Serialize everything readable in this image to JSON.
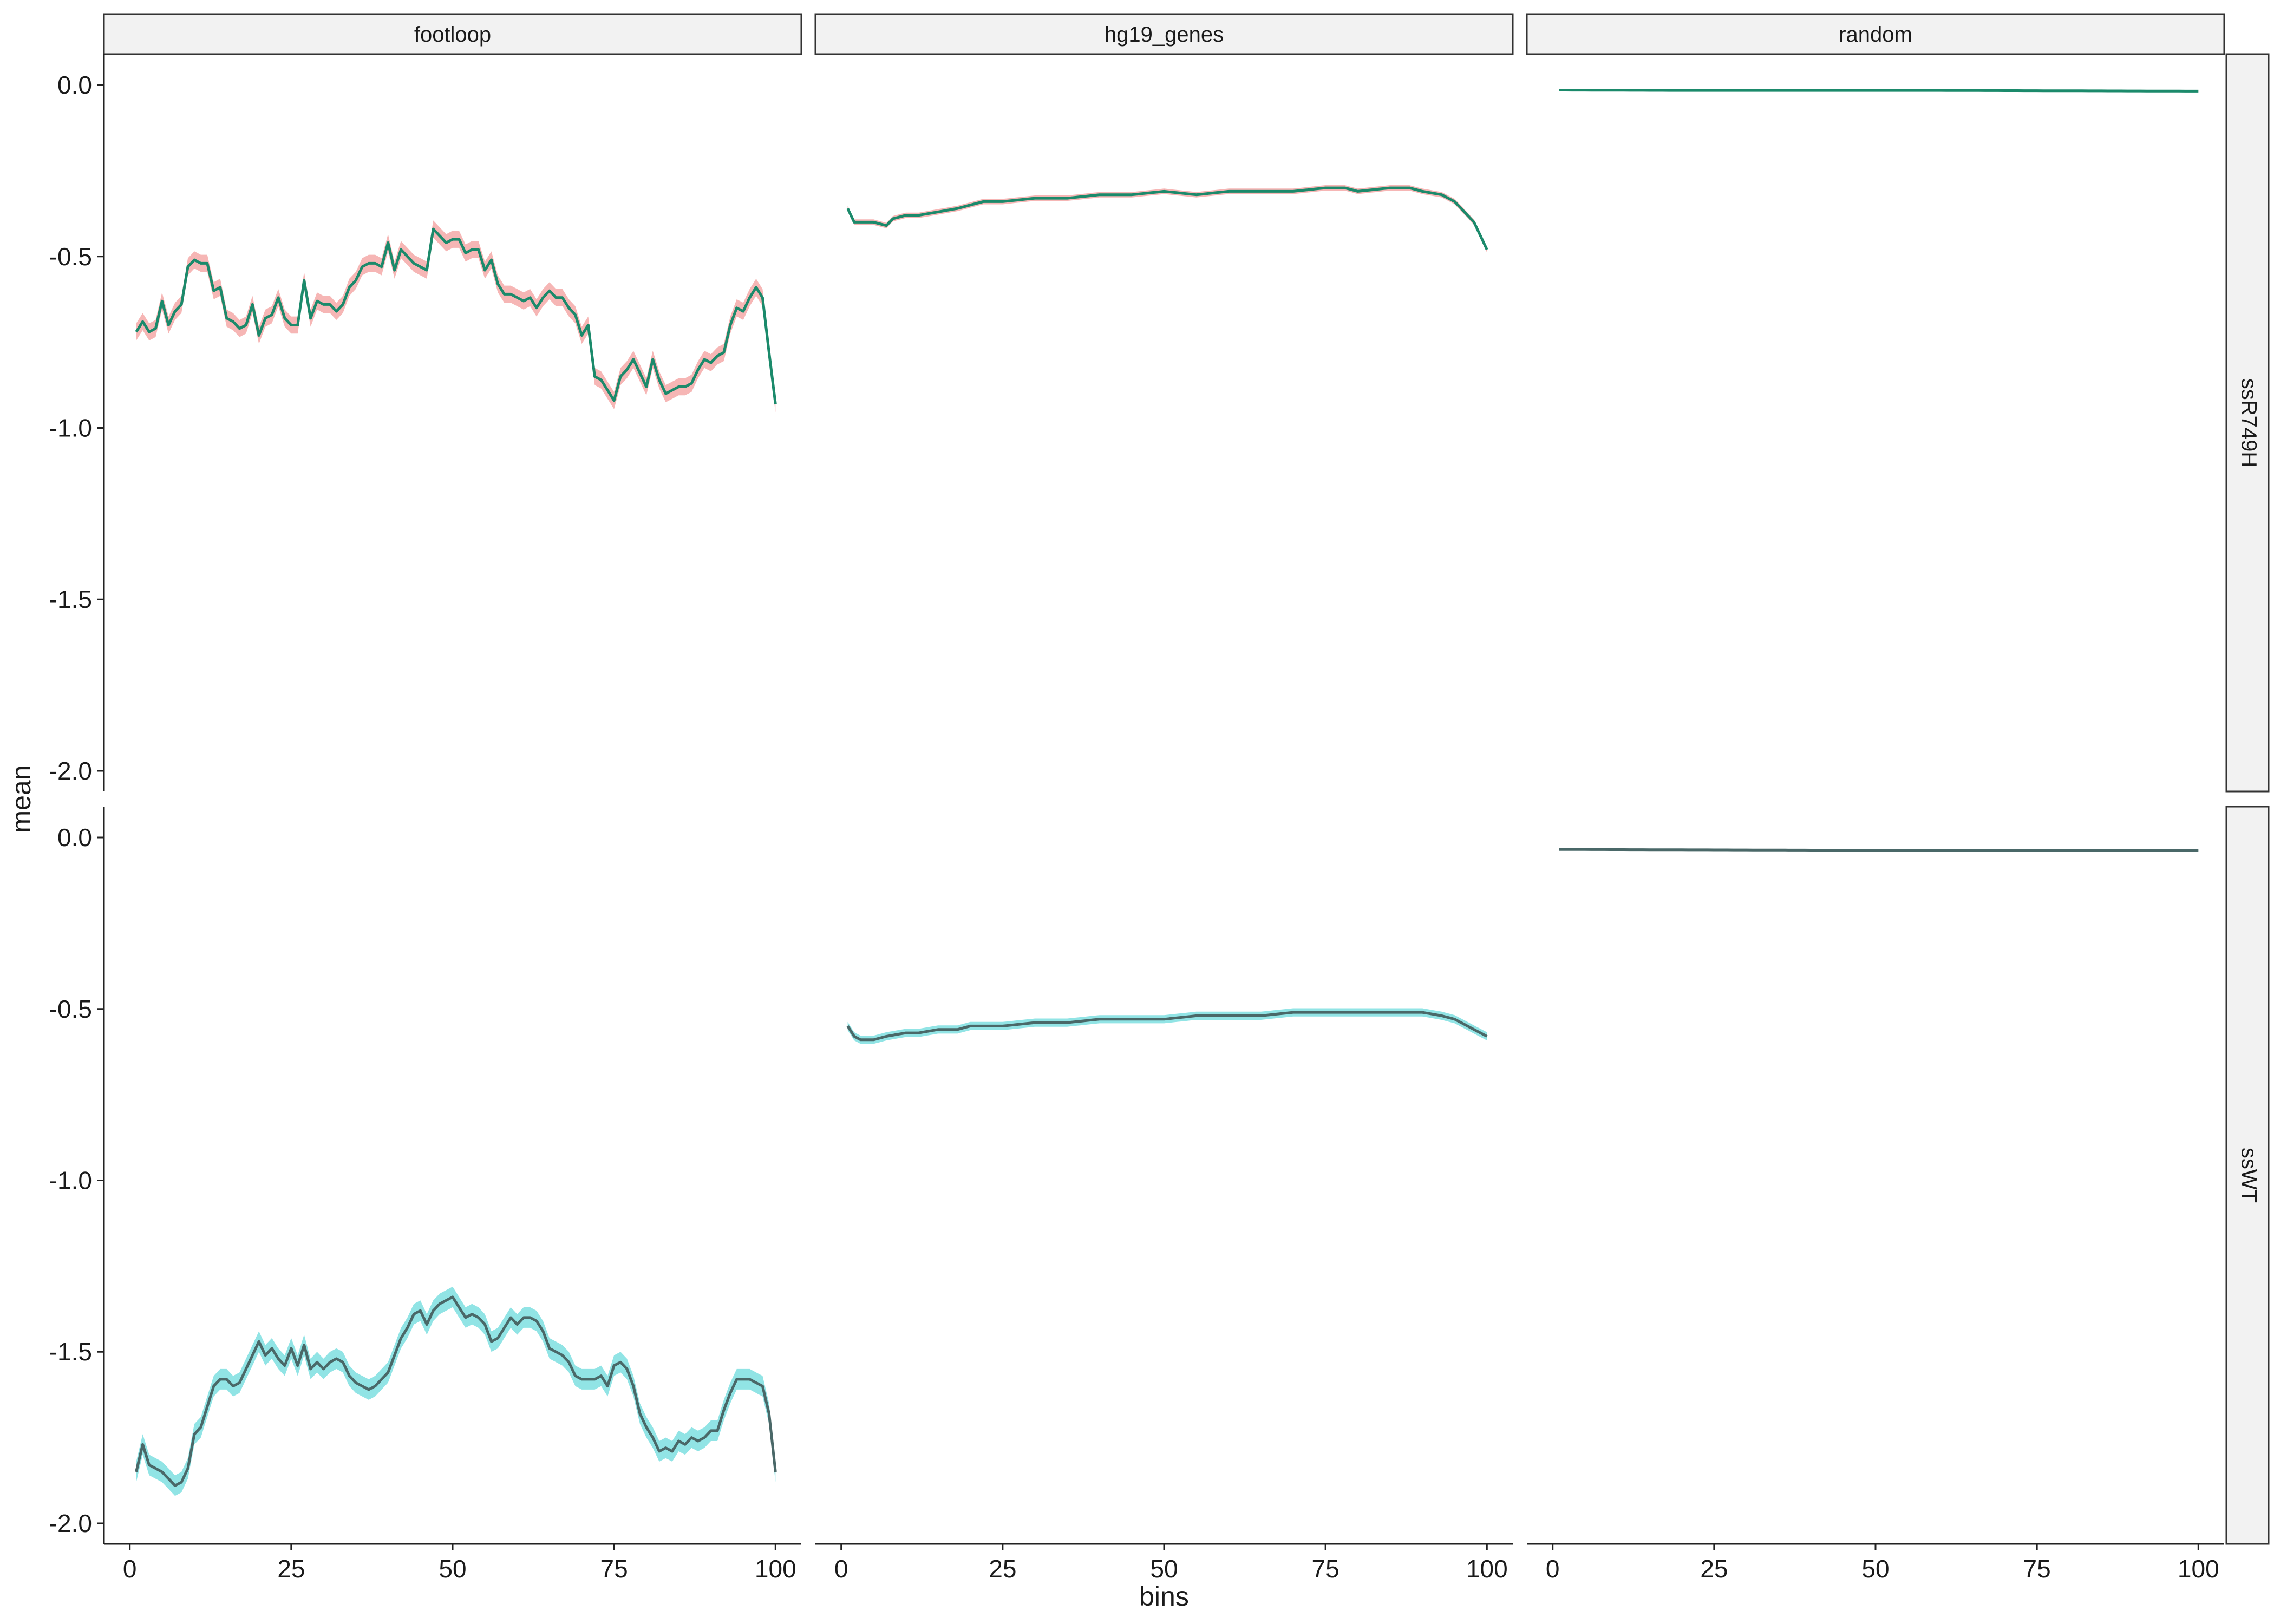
{
  "chart_data": {
    "type": "line",
    "xlabel": "bins",
    "ylabel": "mean",
    "xlim": [
      0,
      100
    ],
    "ylim": [
      -2.0,
      0.0
    ],
    "x_ticks": [
      0,
      25,
      50,
      75,
      100
    ],
    "y_ticks": [
      0.0,
      -0.5,
      -1.0,
      -1.5,
      -2.0
    ],
    "y_tick_labels": [
      "0.0",
      "-0.5",
      "-1.0",
      "-1.5",
      "-2.0"
    ],
    "grid": false,
    "legend": "none",
    "columns": [
      "footloop",
      "hg19_genes",
      "random"
    ],
    "rows": [
      "ssR749H",
      "ssWT"
    ],
    "colors": {
      "ssR749H": {
        "line": "#1b8a6b",
        "band": "#f4a9a8"
      },
      "ssWT": {
        "line": "#4a6868",
        "band": "#7edfe0"
      }
    },
    "panels": [
      {
        "row": "ssR749H",
        "col": "footloop",
        "band_width": 0.025,
        "keypoints": [
          [
            1,
            -0.72
          ],
          [
            2,
            -0.69
          ],
          [
            3,
            -0.72
          ],
          [
            4,
            -0.71
          ],
          [
            5,
            -0.63
          ],
          [
            6,
            -0.7
          ],
          [
            7,
            -0.66
          ],
          [
            8,
            -0.64
          ],
          [
            9,
            -0.53
          ],
          [
            10,
            -0.51
          ],
          [
            11,
            -0.52
          ],
          [
            12,
            -0.52
          ],
          [
            13,
            -0.6
          ],
          [
            14,
            -0.59
          ],
          [
            15,
            -0.68
          ],
          [
            16,
            -0.69
          ],
          [
            17,
            -0.71
          ],
          [
            18,
            -0.7
          ],
          [
            19,
            -0.64
          ],
          [
            20,
            -0.73
          ],
          [
            21,
            -0.68
          ],
          [
            22,
            -0.67
          ],
          [
            23,
            -0.62
          ],
          [
            24,
            -0.68
          ],
          [
            25,
            -0.7
          ],
          [
            26,
            -0.7
          ],
          [
            27,
            -0.57
          ],
          [
            28,
            -0.68
          ],
          [
            29,
            -0.63
          ],
          [
            30,
            -0.64
          ],
          [
            31,
            -0.64
          ],
          [
            32,
            -0.66
          ],
          [
            33,
            -0.64
          ],
          [
            34,
            -0.59
          ],
          [
            35,
            -0.57
          ],
          [
            36,
            -0.53
          ],
          [
            37,
            -0.52
          ],
          [
            38,
            -0.52
          ],
          [
            39,
            -0.53
          ],
          [
            40,
            -0.46
          ],
          [
            41,
            -0.54
          ],
          [
            42,
            -0.48
          ],
          [
            43,
            -0.5
          ],
          [
            44,
            -0.52
          ],
          [
            45,
            -0.53
          ],
          [
            46,
            -0.54
          ],
          [
            47,
            -0.42
          ],
          [
            48,
            -0.44
          ],
          [
            49,
            -0.46
          ],
          [
            50,
            -0.45
          ],
          [
            51,
            -0.45
          ],
          [
            52,
            -0.49
          ],
          [
            53,
            -0.48
          ],
          [
            54,
            -0.48
          ],
          [
            55,
            -0.54
          ],
          [
            56,
            -0.51
          ],
          [
            57,
            -0.58
          ],
          [
            58,
            -0.61
          ],
          [
            59,
            -0.61
          ],
          [
            60,
            -0.62
          ],
          [
            61,
            -0.63
          ],
          [
            62,
            -0.62
          ],
          [
            63,
            -0.65
          ],
          [
            64,
            -0.62
          ],
          [
            65,
            -0.6
          ],
          [
            66,
            -0.62
          ],
          [
            67,
            -0.62
          ],
          [
            68,
            -0.65
          ],
          [
            69,
            -0.67
          ],
          [
            70,
            -0.73
          ],
          [
            71,
            -0.7
          ],
          [
            72,
            -0.85
          ],
          [
            73,
            -0.86
          ],
          [
            74,
            -0.89
          ],
          [
            75,
            -0.92
          ],
          [
            76,
            -0.85
          ],
          [
            77,
            -0.83
          ],
          [
            78,
            -0.8
          ],
          [
            79,
            -0.84
          ],
          [
            80,
            -0.88
          ],
          [
            81,
            -0.8
          ],
          [
            82,
            -0.86
          ],
          [
            83,
            -0.9
          ],
          [
            84,
            -0.89
          ],
          [
            85,
            -0.88
          ],
          [
            86,
            -0.88
          ],
          [
            87,
            -0.87
          ],
          [
            88,
            -0.83
          ],
          [
            89,
            -0.8
          ],
          [
            90,
            -0.81
          ],
          [
            91,
            -0.79
          ],
          [
            92,
            -0.78
          ],
          [
            93,
            -0.7
          ],
          [
            94,
            -0.65
          ],
          [
            95,
            -0.66
          ],
          [
            96,
            -0.62
          ],
          [
            97,
            -0.59
          ],
          [
            98,
            -0.62
          ],
          [
            99,
            -0.78
          ],
          [
            100,
            -0.93
          ]
        ]
      },
      {
        "row": "ssR749H",
        "col": "hg19_genes",
        "band_width": 0.008,
        "keypoints": [
          [
            1,
            -0.36
          ],
          [
            2,
            -0.4
          ],
          [
            3,
            -0.4
          ],
          [
            5,
            -0.4
          ],
          [
            7,
            -0.41
          ],
          [
            8,
            -0.39
          ],
          [
            10,
            -0.38
          ],
          [
            12,
            -0.38
          ],
          [
            15,
            -0.37
          ],
          [
            18,
            -0.36
          ],
          [
            20,
            -0.35
          ],
          [
            22,
            -0.34
          ],
          [
            25,
            -0.34
          ],
          [
            30,
            -0.33
          ],
          [
            35,
            -0.33
          ],
          [
            40,
            -0.32
          ],
          [
            45,
            -0.32
          ],
          [
            50,
            -0.31
          ],
          [
            55,
            -0.32
          ],
          [
            60,
            -0.31
          ],
          [
            65,
            -0.31
          ],
          [
            70,
            -0.31
          ],
          [
            75,
            -0.3
          ],
          [
            78,
            -0.3
          ],
          [
            80,
            -0.31
          ],
          [
            85,
            -0.3
          ],
          [
            88,
            -0.3
          ],
          [
            90,
            -0.31
          ],
          [
            93,
            -0.32
          ],
          [
            95,
            -0.34
          ],
          [
            97,
            -0.38
          ],
          [
            98,
            -0.4
          ],
          [
            100,
            -0.48
          ]
        ]
      },
      {
        "row": "ssR749H",
        "col": "random",
        "band_width": 0.002,
        "keypoints": [
          [
            1,
            -0.015
          ],
          [
            20,
            -0.016
          ],
          [
            40,
            -0.016
          ],
          [
            60,
            -0.016
          ],
          [
            80,
            -0.017
          ],
          [
            100,
            -0.018
          ]
        ]
      },
      {
        "row": "ssWT",
        "col": "footloop",
        "band_width": 0.03,
        "keypoints": [
          [
            1,
            -1.85
          ],
          [
            2,
            -1.77
          ],
          [
            3,
            -1.83
          ],
          [
            4,
            -1.84
          ],
          [
            5,
            -1.85
          ],
          [
            6,
            -1.87
          ],
          [
            7,
            -1.89
          ],
          [
            8,
            -1.88
          ],
          [
            9,
            -1.84
          ],
          [
            10,
            -1.74
          ],
          [
            11,
            -1.72
          ],
          [
            12,
            -1.66
          ],
          [
            13,
            -1.6
          ],
          [
            14,
            -1.58
          ],
          [
            15,
            -1.58
          ],
          [
            16,
            -1.6
          ],
          [
            17,
            -1.59
          ],
          [
            18,
            -1.55
          ],
          [
            19,
            -1.51
          ],
          [
            20,
            -1.47
          ],
          [
            21,
            -1.51
          ],
          [
            22,
            -1.49
          ],
          [
            23,
            -1.52
          ],
          [
            24,
            -1.54
          ],
          [
            25,
            -1.49
          ],
          [
            26,
            -1.54
          ],
          [
            27,
            -1.48
          ],
          [
            28,
            -1.55
          ],
          [
            29,
            -1.53
          ],
          [
            30,
            -1.55
          ],
          [
            31,
            -1.53
          ],
          [
            32,
            -1.52
          ],
          [
            33,
            -1.53
          ],
          [
            34,
            -1.57
          ],
          [
            35,
            -1.59
          ],
          [
            36,
            -1.6
          ],
          [
            37,
            -1.61
          ],
          [
            38,
            -1.6
          ],
          [
            39,
            -1.58
          ],
          [
            40,
            -1.56
          ],
          [
            41,
            -1.51
          ],
          [
            42,
            -1.46
          ],
          [
            43,
            -1.43
          ],
          [
            44,
            -1.39
          ],
          [
            45,
            -1.38
          ],
          [
            46,
            -1.42
          ],
          [
            47,
            -1.38
          ],
          [
            48,
            -1.36
          ],
          [
            49,
            -1.35
          ],
          [
            50,
            -1.34
          ],
          [
            51,
            -1.37
          ],
          [
            52,
            -1.4
          ],
          [
            53,
            -1.39
          ],
          [
            54,
            -1.4
          ],
          [
            55,
            -1.42
          ],
          [
            56,
            -1.47
          ],
          [
            57,
            -1.46
          ],
          [
            58,
            -1.43
          ],
          [
            59,
            -1.4
          ],
          [
            60,
            -1.42
          ],
          [
            61,
            -1.4
          ],
          [
            62,
            -1.4
          ],
          [
            63,
            -1.41
          ],
          [
            64,
            -1.44
          ],
          [
            65,
            -1.49
          ],
          [
            66,
            -1.5
          ],
          [
            67,
            -1.51
          ],
          [
            68,
            -1.53
          ],
          [
            69,
            -1.57
          ],
          [
            70,
            -1.58
          ],
          [
            71,
            -1.58
          ],
          [
            72,
            -1.58
          ],
          [
            73,
            -1.57
          ],
          [
            74,
            -1.6
          ],
          [
            75,
            -1.54
          ],
          [
            76,
            -1.53
          ],
          [
            77,
            -1.55
          ],
          [
            78,
            -1.6
          ],
          [
            79,
            -1.68
          ],
          [
            80,
            -1.72
          ],
          [
            81,
            -1.75
          ],
          [
            82,
            -1.79
          ],
          [
            83,
            -1.78
          ],
          [
            84,
            -1.79
          ],
          [
            85,
            -1.76
          ],
          [
            86,
            -1.77
          ],
          [
            87,
            -1.75
          ],
          [
            88,
            -1.76
          ],
          [
            89,
            -1.75
          ],
          [
            90,
            -1.73
          ],
          [
            91,
            -1.73
          ],
          [
            92,
            -1.67
          ],
          [
            93,
            -1.62
          ],
          [
            94,
            -1.58
          ],
          [
            95,
            -1.58
          ],
          [
            96,
            -1.58
          ],
          [
            97,
            -1.59
          ],
          [
            98,
            -1.6
          ],
          [
            99,
            -1.68
          ],
          [
            100,
            -1.85
          ]
        ]
      },
      {
        "row": "ssWT",
        "col": "hg19_genes",
        "band_width": 0.012,
        "keypoints": [
          [
            1,
            -0.55
          ],
          [
            2,
            -0.58
          ],
          [
            3,
            -0.59
          ],
          [
            5,
            -0.59
          ],
          [
            7,
            -0.58
          ],
          [
            10,
            -0.57
          ],
          [
            12,
            -0.57
          ],
          [
            15,
            -0.56
          ],
          [
            18,
            -0.56
          ],
          [
            20,
            -0.55
          ],
          [
            23,
            -0.55
          ],
          [
            25,
            -0.55
          ],
          [
            30,
            -0.54
          ],
          [
            35,
            -0.54
          ],
          [
            40,
            -0.53
          ],
          [
            45,
            -0.53
          ],
          [
            50,
            -0.53
          ],
          [
            55,
            -0.52
          ],
          [
            60,
            -0.52
          ],
          [
            65,
            -0.52
          ],
          [
            70,
            -0.51
          ],
          [
            75,
            -0.51
          ],
          [
            80,
            -0.51
          ],
          [
            85,
            -0.51
          ],
          [
            90,
            -0.51
          ],
          [
            93,
            -0.52
          ],
          [
            95,
            -0.53
          ],
          [
            97,
            -0.55
          ],
          [
            100,
            -0.58
          ]
        ]
      },
      {
        "row": "ssWT",
        "col": "random",
        "band_width": 0.002,
        "keypoints": [
          [
            1,
            -0.035
          ],
          [
            20,
            -0.036
          ],
          [
            40,
            -0.037
          ],
          [
            60,
            -0.038
          ],
          [
            80,
            -0.037
          ],
          [
            100,
            -0.038
          ]
        ]
      }
    ]
  }
}
